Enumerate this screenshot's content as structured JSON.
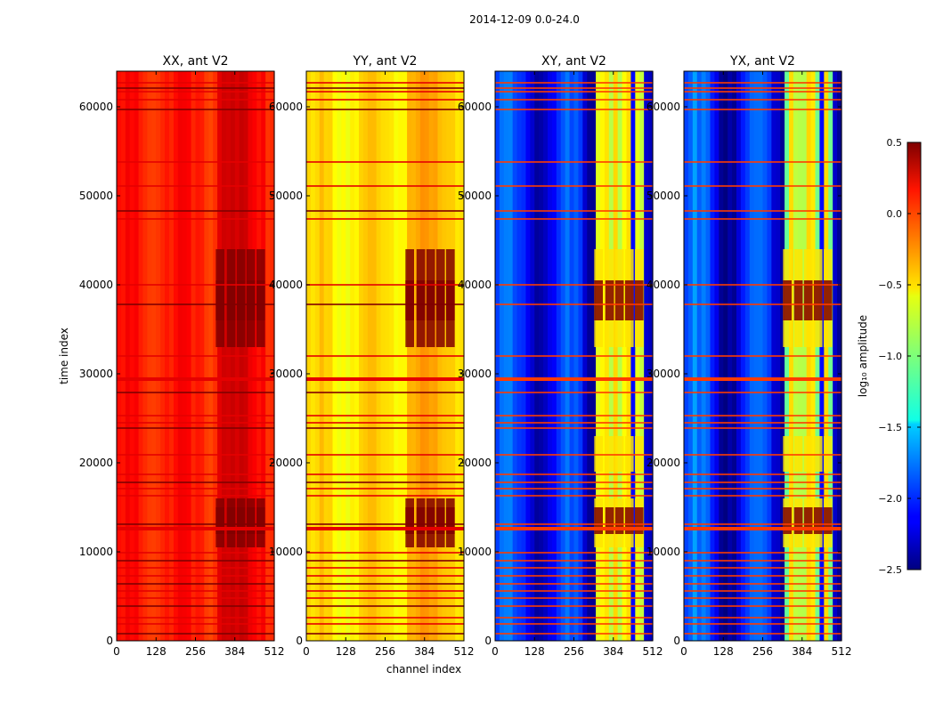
{
  "suptitle": "2014-12-09 0.0-24.0",
  "chart_data": {
    "type": "heatmap",
    "shared_xlabel": "channel index",
    "shared_ylabel": "time index",
    "x_range": [
      0,
      512
    ],
    "y_range": [
      0,
      64000
    ],
    "x_ticks": [
      "0",
      "128",
      "256",
      "384",
      "512"
    ],
    "x_tick_values": [
      0,
      128,
      256,
      384,
      512
    ],
    "y_ticks": [
      "0",
      "10000",
      "20000",
      "30000",
      "40000",
      "50000",
      "60000"
    ],
    "y_tick_values": [
      0,
      10000,
      20000,
      30000,
      40000,
      50000,
      60000
    ],
    "panels": [
      {
        "title": "XX, ant V2",
        "base_level": 0.05,
        "hot_level": 0.4,
        "style": "auto"
      },
      {
        "title": "YY, ant V2",
        "base_level": -0.55,
        "hot_level": 0.45,
        "style": "auto"
      },
      {
        "title": "XY, ant V2",
        "base_level": -2.1,
        "hot_level": -0.8,
        "style": "cross"
      },
      {
        "title": "YX, ant V2",
        "base_level": -2.1,
        "hot_level": -0.8,
        "style": "cross"
      }
    ],
    "colorbar": {
      "label": "log₁₀ amplitude",
      "range": [
        -2.5,
        0.5
      ],
      "ticks": [
        "0.5",
        "0.0",
        "−0.5",
        "−1.0",
        "−1.5",
        "−2.0",
        "−2.5"
      ],
      "tick_values": [
        0.5,
        0.0,
        -0.5,
        -1.0,
        -1.5,
        -2.0,
        -2.5
      ]
    },
    "colormap": "jet"
  }
}
